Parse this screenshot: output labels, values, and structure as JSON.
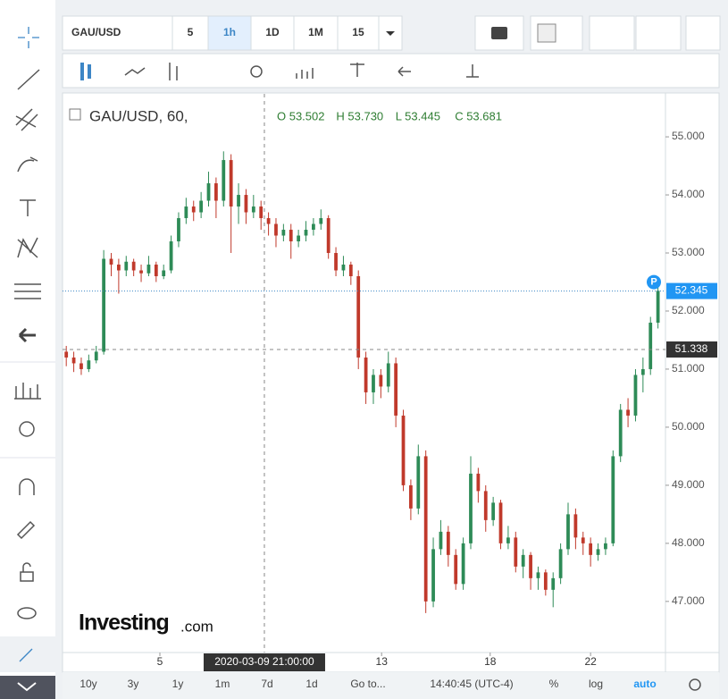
{
  "toolbar": {
    "symbol": "GAU/USD",
    "intervals": [
      "5",
      "1h",
      "1D",
      "1M",
      "15"
    ],
    "selected": 1
  },
  "bottom_bar": {
    "ranges": [
      "10y",
      "3y",
      "1y",
      "1m",
      "7d",
      "1d"
    ],
    "goto": "Go to...",
    "clock": "14:40:45 (UTC-4)",
    "options": [
      "%",
      "log",
      "auto"
    ]
  },
  "logo": [
    "Investing",
    ".com"
  ],
  "chart_data": {
    "type": "candlestick",
    "title": "GAU/USD, 60,",
    "ohlc": [
      "O 53.502",
      "H 53.730",
      "L 53.445",
      "C 53.681"
    ],
    "color_up": "#2e8b57",
    "color_down": "#c0392b",
    "xlim": [
      -0.5,
      80
    ],
    "ylim": [
      46.12,
      55.74
    ],
    "xticks": [
      {
        "value": 12.5,
        "label": "5"
      },
      {
        "value": 42.1,
        "label": "13"
      },
      {
        "value": 56.6,
        "label": "18"
      },
      {
        "value": 70,
        "label": "22"
      }
    ],
    "yticks": [
      {
        "value": 47,
        "label": "47.000"
      },
      {
        "value": 48,
        "label": "48.000"
      },
      {
        "value": 49,
        "label": "49.000"
      },
      {
        "value": 50,
        "label": "50.000"
      },
      {
        "value": 51,
        "label": "51.000"
      },
      {
        "value": 52,
        "label": "52.000"
      },
      {
        "value": 53,
        "label": "53.000"
      },
      {
        "value": 54,
        "label": "54.000"
      },
      {
        "value": 55,
        "label": "55.000"
      }
    ],
    "grid": false,
    "last_price": 52.345,
    "last_badge": "P",
    "crosshair": {
      "x": 26.45,
      "y": 51.338,
      "label": "2020-03-09 21:00:00"
    },
    "candles": [
      [
        51.3,
        51.4,
        51.05,
        51.2
      ],
      [
        51.2,
        51.3,
        50.95,
        51.1
      ],
      [
        51.1,
        51.2,
        50.9,
        51.0
      ],
      [
        51.0,
        51.25,
        50.95,
        51.15
      ],
      [
        51.15,
        51.4,
        51.1,
        51.3
      ],
      [
        51.3,
        53.05,
        51.25,
        52.9
      ],
      [
        52.9,
        53.0,
        52.6,
        52.8
      ],
      [
        52.8,
        52.9,
        52.3,
        52.7
      ],
      [
        52.7,
        52.95,
        52.6,
        52.85
      ],
      [
        52.85,
        52.9,
        52.6,
        52.7
      ],
      [
        52.7,
        52.8,
        52.5,
        52.65
      ],
      [
        52.65,
        52.95,
        52.6,
        52.8
      ],
      [
        52.8,
        52.85,
        52.5,
        52.6
      ],
      [
        52.6,
        52.8,
        52.55,
        52.7
      ],
      [
        52.7,
        53.3,
        52.65,
        53.2
      ],
      [
        53.2,
        53.7,
        53.1,
        53.6
      ],
      [
        53.6,
        53.95,
        53.5,
        53.8
      ],
      [
        53.8,
        53.9,
        53.55,
        53.7
      ],
      [
        53.7,
        54.05,
        53.6,
        53.9
      ],
      [
        53.9,
        54.4,
        53.8,
        54.2
      ],
      [
        54.2,
        54.3,
        53.6,
        53.9
      ],
      [
        53.9,
        54.75,
        53.8,
        54.6
      ],
      [
        54.6,
        54.7,
        53.0,
        53.8
      ],
      [
        53.8,
        54.2,
        53.5,
        54.0
      ],
      [
        54.0,
        54.1,
        53.5,
        53.7
      ],
      [
        53.7,
        54.0,
        53.6,
        53.8
      ],
      [
        53.8,
        53.9,
        53.4,
        53.6
      ],
      [
        53.6,
        53.7,
        53.3,
        53.5
      ],
      [
        53.5,
        53.6,
        53.1,
        53.3
      ],
      [
        53.3,
        53.5,
        53.2,
        53.4
      ],
      [
        53.4,
        53.5,
        52.9,
        53.2
      ],
      [
        53.2,
        53.4,
        53.1,
        53.3
      ],
      [
        53.3,
        53.55,
        53.2,
        53.4
      ],
      [
        53.4,
        53.6,
        53.3,
        53.5
      ],
      [
        53.5,
        53.75,
        53.4,
        53.6
      ],
      [
        53.6,
        53.65,
        52.9,
        53.0
      ],
      [
        53.0,
        53.1,
        52.6,
        52.7
      ],
      [
        52.7,
        52.95,
        52.6,
        52.8
      ],
      [
        52.8,
        52.85,
        52.45,
        52.6
      ],
      [
        52.6,
        52.7,
        51.0,
        51.2
      ],
      [
        51.2,
        51.3,
        50.4,
        50.6
      ],
      [
        50.6,
        51.0,
        50.4,
        50.9
      ],
      [
        50.9,
        51.0,
        50.5,
        50.7
      ],
      [
        50.7,
        51.3,
        50.6,
        51.1
      ],
      [
        51.1,
        51.2,
        50.0,
        50.2
      ],
      [
        50.2,
        50.3,
        48.9,
        49.0
      ],
      [
        49.0,
        49.1,
        48.4,
        48.6
      ],
      [
        48.6,
        49.7,
        48.5,
        49.5
      ],
      [
        49.5,
        49.6,
        46.8,
        47.0
      ],
      [
        47.0,
        48.1,
        46.9,
        47.9
      ],
      [
        47.9,
        48.4,
        47.8,
        48.2
      ],
      [
        48.2,
        48.3,
        47.6,
        47.8
      ],
      [
        47.8,
        47.9,
        47.2,
        47.3
      ],
      [
        47.3,
        48.1,
        47.2,
        48.0
      ],
      [
        48.0,
        49.5,
        47.9,
        49.2
      ],
      [
        49.2,
        49.3,
        48.7,
        48.9
      ],
      [
        48.9,
        49.0,
        48.2,
        48.4
      ],
      [
        48.4,
        48.8,
        48.3,
        48.7
      ],
      [
        48.7,
        48.75,
        47.9,
        48.0
      ],
      [
        48.0,
        48.3,
        47.9,
        48.1
      ],
      [
        48.1,
        48.2,
        47.5,
        47.6
      ],
      [
        47.6,
        47.9,
        47.4,
        47.8
      ],
      [
        47.8,
        47.85,
        47.2,
        47.4
      ],
      [
        47.4,
        47.6,
        47.2,
        47.5
      ],
      [
        47.5,
        47.55,
        47.1,
        47.2
      ],
      [
        47.2,
        47.5,
        46.9,
        47.4
      ],
      [
        47.4,
        48.0,
        47.3,
        47.9
      ],
      [
        47.9,
        48.7,
        47.8,
        48.5
      ],
      [
        48.5,
        48.6,
        47.9,
        48.1
      ],
      [
        48.1,
        48.2,
        47.8,
        48.0
      ],
      [
        48.0,
        48.1,
        47.6,
        47.8
      ],
      [
        47.8,
        48.0,
        47.7,
        47.9
      ],
      [
        47.9,
        48.1,
        47.8,
        48.0
      ],
      [
        48.0,
        49.6,
        47.95,
        49.5
      ],
      [
        49.5,
        50.4,
        49.4,
        50.3
      ],
      [
        50.3,
        50.5,
        50.0,
        50.2
      ],
      [
        50.2,
        51.0,
        50.1,
        50.9
      ],
      [
        50.9,
        51.2,
        50.6,
        51.0
      ],
      [
        51.0,
        51.9,
        50.9,
        51.8
      ],
      [
        51.8,
        52.45,
        51.7,
        52.35
      ]
    ]
  }
}
